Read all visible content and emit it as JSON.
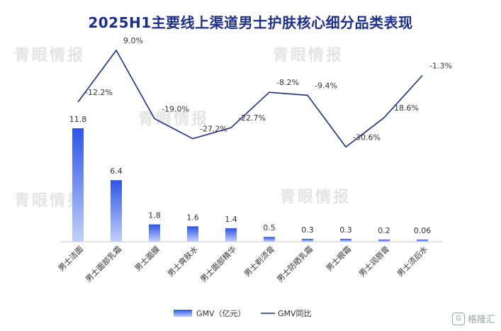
{
  "chart_data": {
    "type": "bar",
    "title": "2025H1主要线上渠道男士护肤核心细分品类表现",
    "categories": [
      "男士洁面",
      "男士面部乳霜",
      "男士面膜",
      "男士爽肤水",
      "男士面部精华",
      "男士剃须膏",
      "男士防晒乳霜",
      "男士眼霜",
      "男士润唇膏",
      "男士须后水"
    ],
    "series": [
      {
        "name": "GMV（亿元）",
        "type": "bar",
        "values": [
          11.8,
          6.4,
          1.8,
          1.6,
          1.4,
          0.5,
          0.3,
          0.3,
          0.2,
          0.06
        ],
        "labels": [
          "11.8",
          "6.4",
          "1.8",
          "1.6",
          "1.4",
          "0.5",
          "0.3",
          "0.3",
          "0.2",
          "0.06"
        ]
      },
      {
        "name": "GMV同比",
        "type": "line",
        "values": [
          -12.2,
          9.0,
          -19.0,
          -27.2,
          -22.7,
          -8.2,
          -9.4,
          -30.6,
          -18.6,
          -1.3
        ],
        "labels": [
          "-12.2%",
          "9.0%",
          "-19.0%",
          "-27.2%",
          "-22.7%",
          "-8.2%",
          "-9.4%",
          "-30.6%",
          "-18.6%",
          "-1.3%"
        ]
      }
    ],
    "legend_position": "bottom-center",
    "grid": false,
    "colors": {
      "bar_top": "#2b55e8",
      "bar_bottom": "#c3d0f7",
      "line": "#1c2f8c",
      "title": "#1c2f8c"
    }
  },
  "watermark": "青眼情报",
  "logo": "格隆汇"
}
